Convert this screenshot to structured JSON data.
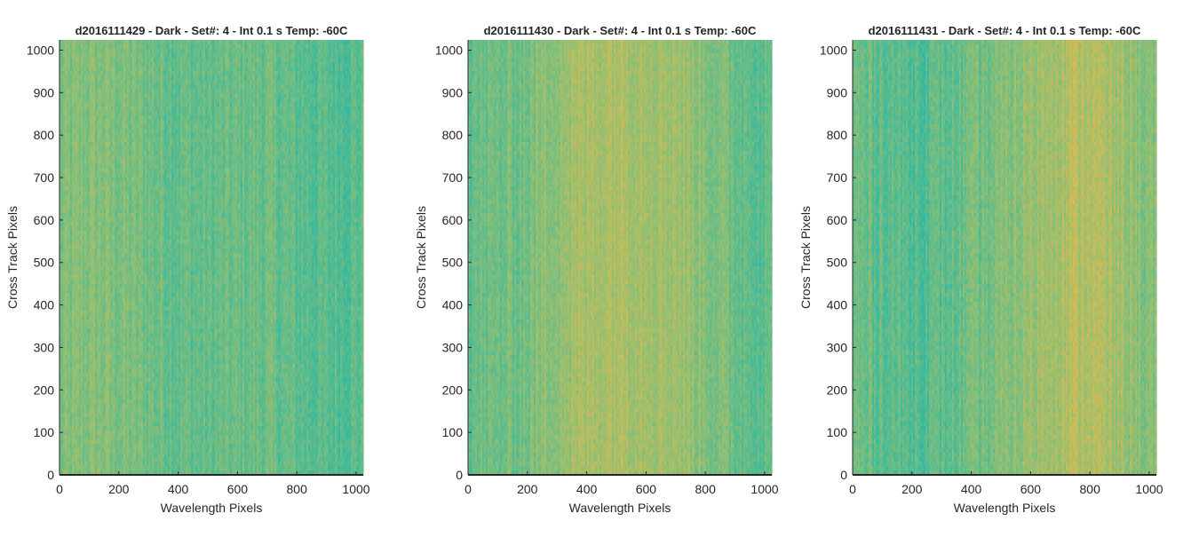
{
  "chart_data": [
    {
      "type": "heatmap",
      "title": "d2016111429 - Dark - Set#: 4 - Int 0.1 s Temp: -60C",
      "xlabel": "Wavelength Pixels",
      "ylabel": "Cross Track Pixels",
      "xlim": [
        0,
        1024
      ],
      "ylim": [
        0,
        1024
      ],
      "xticks": [
        0,
        200,
        400,
        600,
        800,
        1000
      ],
      "yticks": [
        0,
        100,
        200,
        300,
        400,
        500,
        600,
        700,
        800,
        900,
        1000
      ],
      "colormap": "parula",
      "grid": false,
      "column_profile": {
        "x": [
          0,
          100,
          200,
          300,
          400,
          500,
          600,
          700,
          800,
          900,
          1024
        ],
        "relative_level": [
          0.4,
          0.45,
          0.42,
          0.38,
          0.34,
          0.32,
          0.35,
          0.36,
          0.3,
          0.28,
          0.3
        ]
      }
    },
    {
      "type": "heatmap",
      "title": "d2016111430 - Dark - Set#: 4 - Int 0.1 s Temp: -60C",
      "xlabel": "Wavelength Pixels",
      "ylabel": "Cross Track Pixels",
      "xlim": [
        0,
        1024
      ],
      "ylim": [
        0,
        1024
      ],
      "xticks": [
        0,
        200,
        400,
        600,
        800,
        1000
      ],
      "yticks": [
        0,
        100,
        200,
        300,
        400,
        500,
        600,
        700,
        800,
        900,
        1000
      ],
      "colormap": "parula",
      "grid": false,
      "column_profile": {
        "x": [
          0,
          100,
          200,
          300,
          400,
          500,
          600,
          700,
          800,
          900,
          1024
        ],
        "relative_level": [
          0.34,
          0.36,
          0.4,
          0.52,
          0.58,
          0.62,
          0.6,
          0.56,
          0.46,
          0.36,
          0.3
        ]
      }
    },
    {
      "type": "heatmap",
      "title": "d2016111431 - Dark - Set#: 4 - Int 0.1 s Temp: -60C",
      "xlabel": "Wavelength Pixels",
      "ylabel": "Cross Track Pixels",
      "xlim": [
        0,
        1024
      ],
      "ylim": [
        0,
        1024
      ],
      "xticks": [
        0,
        200,
        400,
        600,
        800,
        1000
      ],
      "yticks": [
        0,
        100,
        200,
        300,
        400,
        500,
        600,
        700,
        800,
        900,
        1000
      ],
      "colormap": "parula",
      "grid": false,
      "column_profile": {
        "x": [
          0,
          100,
          200,
          300,
          400,
          500,
          600,
          700,
          800,
          900,
          1024
        ],
        "relative_level": [
          0.36,
          0.32,
          0.28,
          0.3,
          0.36,
          0.42,
          0.52,
          0.62,
          0.64,
          0.54,
          0.42
        ]
      }
    }
  ]
}
